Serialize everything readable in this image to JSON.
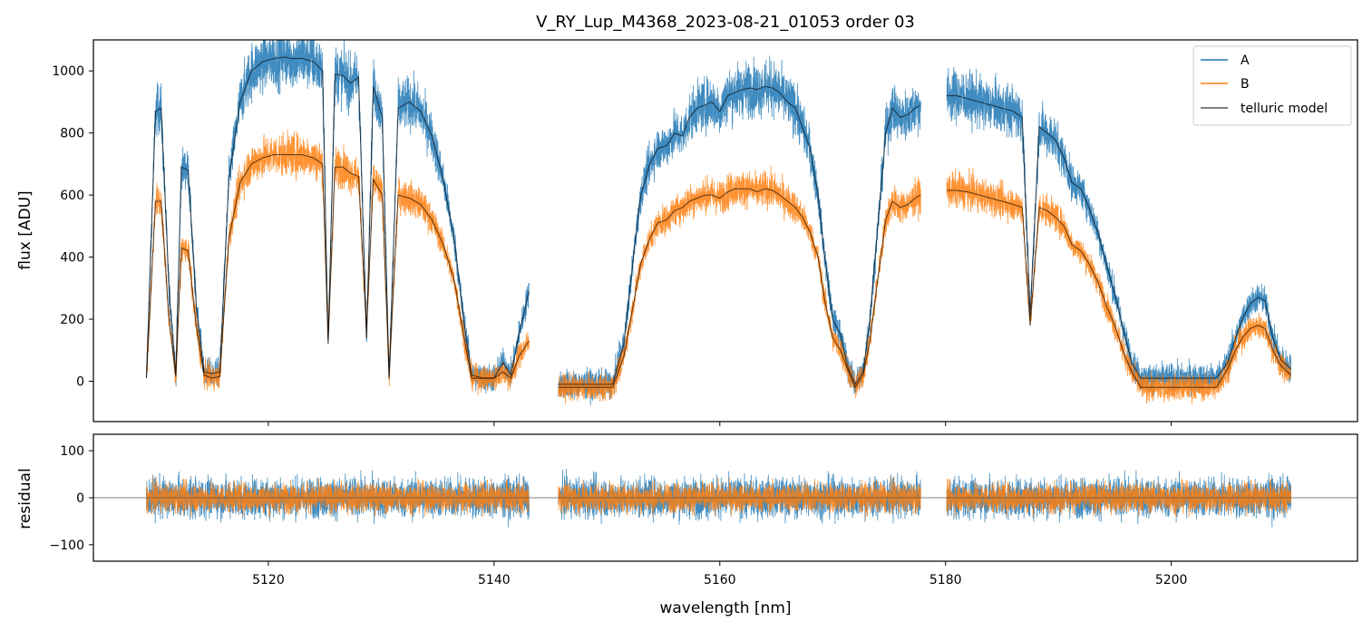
{
  "chart_data": [
    {
      "type": "line",
      "panel": "top",
      "title": "V_RY_Lup_M4368_2023-08-21_01053  order 03",
      "xlabel": "",
      "ylabel": "flux [ADU]",
      "xlim": [
        5104.5,
        5216.5
      ],
      "ylim": [
        -130,
        1100
      ],
      "xticks": [
        5120,
        5140,
        5160,
        5180,
        5200
      ],
      "yticks": [
        0,
        200,
        400,
        600,
        800,
        1000
      ],
      "ytick_labels": [
        "0",
        "200",
        "400",
        "600",
        "800",
        "1000"
      ],
      "segments": [
        [
          5109.2,
          5143.1
        ],
        [
          5145.7,
          5177.8
        ],
        [
          5180.1,
          5210.6
        ]
      ],
      "series": [
        {
          "name": "A",
          "color": "#1f77b4",
          "x": [
            5109.2,
            5110.0,
            5110.5,
            5111.2,
            5111.8,
            5112.3,
            5112.9,
            5113.6,
            5114.3,
            5115.0,
            5115.7,
            5116.5,
            5117.5,
            5118.5,
            5119.5,
            5120.5,
            5121.5,
            5122.0,
            5123.0,
            5124.0,
            5124.8,
            5125.3,
            5125.9,
            5126.6,
            5127.3,
            5128.0,
            5128.7,
            5129.3,
            5130.1,
            5130.7,
            5131.5,
            5132.5,
            5133.5,
            5134.5,
            5135.5,
            5136.5,
            5137.3,
            5138.0,
            5139.0,
            5140.0,
            5140.8,
            5141.5,
            5142.2,
            5143.1,
            5145.7,
            5148.0,
            5150.5,
            5151.5,
            5152.5,
            5153.0,
            5153.8,
            5154.5,
            5155.3,
            5156.0,
            5156.7,
            5157.3,
            5158.0,
            5158.7,
            5159.3,
            5160.0,
            5160.7,
            5161.3,
            5162.0,
            5162.7,
            5163.3,
            5164.0,
            5164.7,
            5165.3,
            5166.0,
            5166.7,
            5167.3,
            5168.0,
            5168.7,
            5169.3,
            5170.0,
            5170.7,
            5171.3,
            5172.0,
            5172.7,
            5173.3,
            5174.0,
            5174.7,
            5175.3,
            5176.0,
            5176.7,
            5177.3,
            5177.8,
            5180.1,
            5181.0,
            5182.0,
            5183.0,
            5184.0,
            5185.0,
            5186.0,
            5186.8,
            5187.5,
            5188.3,
            5189.0,
            5189.7,
            5190.5,
            5191.2,
            5192.0,
            5192.7,
            5193.5,
            5194.3,
            5195.0,
            5195.8,
            5196.5,
            5197.3,
            5198.0,
            5199.0,
            5200.0,
            5201.0,
            5202.0,
            5203.0,
            5204.0,
            5205.0,
            5205.7,
            5206.3,
            5207.0,
            5207.7,
            5208.3,
            5209.0,
            5209.7,
            5210.3,
            5210.6
          ],
          "y": [
            10,
            870,
            880,
            300,
            20,
            690,
            680,
            250,
            30,
            25,
            30,
            650,
            900,
            1000,
            1030,
            1040,
            1045,
            1040,
            1040,
            1030,
            1000,
            120,
            990,
            985,
            960,
            980,
            140,
            950,
            850,
            10,
            880,
            900,
            870,
            790,
            650,
            450,
            200,
            20,
            10,
            10,
            60,
            20,
            150,
            290,
            -10,
            -10,
            -10,
            120,
            450,
            600,
            700,
            750,
            760,
            800,
            790,
            850,
            880,
            890,
            900,
            870,
            920,
            930,
            940,
            945,
            940,
            950,
            945,
            930,
            900,
            880,
            820,
            750,
            600,
            400,
            200,
            150,
            50,
            -10,
            30,
            200,
            500,
            800,
            880,
            850,
            860,
            880,
            890,
            920,
            920,
            910,
            900,
            890,
            880,
            870,
            850,
            210,
            820,
            800,
            780,
            720,
            640,
            620,
            560,
            480,
            370,
            280,
            160,
            60,
            10,
            10,
            10,
            10,
            10,
            10,
            10,
            10,
            60,
            140,
            200,
            250,
            270,
            260,
            140,
            70,
            50,
            40
          ]
        },
        {
          "name": "B",
          "color": "#ff7f0e",
          "x": [
            5109.2,
            5110.0,
            5110.5,
            5111.2,
            5111.8,
            5112.3,
            5112.9,
            5113.6,
            5114.3,
            5115.0,
            5115.7,
            5116.5,
            5117.5,
            5118.5,
            5119.5,
            5120.5,
            5121.5,
            5122.0,
            5123.0,
            5124.0,
            5124.8,
            5125.3,
            5125.9,
            5126.6,
            5127.3,
            5128.0,
            5128.7,
            5129.3,
            5130.1,
            5130.7,
            5131.5,
            5132.5,
            5133.5,
            5134.5,
            5135.5,
            5136.5,
            5137.3,
            5138.0,
            5139.0,
            5140.0,
            5140.8,
            5141.5,
            5142.2,
            5143.1,
            5145.7,
            5148.0,
            5150.5,
            5151.5,
            5152.5,
            5153.0,
            5153.8,
            5154.5,
            5155.3,
            5156.0,
            5156.7,
            5157.3,
            5158.0,
            5158.7,
            5159.3,
            5160.0,
            5160.7,
            5161.3,
            5162.0,
            5162.7,
            5163.3,
            5164.0,
            5164.7,
            5165.3,
            5166.0,
            5166.7,
            5167.3,
            5168.0,
            5168.7,
            5169.3,
            5170.0,
            5170.7,
            5171.3,
            5172.0,
            5172.7,
            5173.3,
            5174.0,
            5174.7,
            5175.3,
            5176.0,
            5176.7,
            5177.3,
            5177.8,
            5180.1,
            5181.0,
            5182.0,
            5183.0,
            5184.0,
            5185.0,
            5186.0,
            5186.8,
            5187.5,
            5188.3,
            5189.0,
            5189.7,
            5190.5,
            5191.2,
            5192.0,
            5192.7,
            5193.5,
            5194.3,
            5195.0,
            5195.8,
            5196.5,
            5197.3,
            5198.0,
            5199.0,
            5200.0,
            5201.0,
            5202.0,
            5203.0,
            5204.0,
            5205.0,
            5205.7,
            5206.3,
            5207.0,
            5207.7,
            5208.3,
            5209.0,
            5209.7,
            5210.3,
            5210.6
          ],
          "y": [
            10,
            580,
            580,
            200,
            15,
            430,
            420,
            180,
            20,
            10,
            15,
            460,
            640,
            700,
            720,
            730,
            730,
            730,
            730,
            720,
            700,
            130,
            690,
            690,
            670,
            660,
            160,
            650,
            600,
            15,
            600,
            590,
            570,
            520,
            440,
            320,
            150,
            10,
            10,
            10,
            30,
            10,
            80,
            130,
            -20,
            -20,
            -20,
            80,
            280,
            380,
            460,
            510,
            520,
            550,
            560,
            580,
            590,
            600,
            600,
            590,
            610,
            620,
            620,
            620,
            610,
            620,
            615,
            600,
            580,
            560,
            530,
            480,
            400,
            260,
            140,
            100,
            40,
            -20,
            20,
            130,
            330,
            520,
            580,
            560,
            570,
            590,
            600,
            615,
            615,
            610,
            600,
            590,
            580,
            570,
            560,
            180,
            560,
            550,
            530,
            500,
            440,
            420,
            380,
            320,
            240,
            180,
            90,
            30,
            -20,
            -20,
            -20,
            -20,
            -20,
            -20,
            -20,
            -20,
            40,
            100,
            140,
            170,
            180,
            170,
            100,
            50,
            30,
            20
          ]
        },
        {
          "name": "telluric model",
          "color": "#000000",
          "x": [
            5109.2,
            5110.0,
            5110.5,
            5111.2,
            5111.8,
            5112.3,
            5112.9,
            5113.6,
            5114.3,
            5115.0,
            5115.7,
            5116.5,
            5117.5,
            5118.5,
            5119.5,
            5120.5,
            5121.5,
            5122.0,
            5123.0,
            5124.0,
            5124.8,
            5125.3,
            5125.9,
            5126.6,
            5127.3,
            5128.0,
            5128.7,
            5129.3,
            5130.1,
            5130.7,
            5131.5,
            5132.5,
            5133.5,
            5134.5,
            5135.5,
            5136.5,
            5137.3,
            5138.0,
            5139.0,
            5140.0,
            5140.8,
            5141.5,
            5142.2,
            5143.1,
            5145.7,
            5148.0,
            5150.5,
            5151.5,
            5152.5,
            5153.0,
            5153.8,
            5154.5,
            5155.3,
            5156.0,
            5156.7,
            5157.3,
            5158.0,
            5158.7,
            5159.3,
            5160.0,
            5160.7,
            5161.3,
            5162.0,
            5162.7,
            5163.3,
            5164.0,
            5164.7,
            5165.3,
            5166.0,
            5166.7,
            5167.3,
            5168.0,
            5168.7,
            5169.3,
            5170.0,
            5170.7,
            5171.3,
            5172.0,
            5172.7,
            5173.3,
            5174.0,
            5174.7,
            5175.3,
            5176.0,
            5176.7,
            5177.3,
            5177.8,
            5180.1,
            5181.0,
            5182.0,
            5183.0,
            5184.0,
            5185.0,
            5186.0,
            5186.8,
            5187.5,
            5188.3,
            5189.0,
            5189.7,
            5190.5,
            5191.2,
            5192.0,
            5192.7,
            5193.5,
            5194.3,
            5195.0,
            5195.8,
            5196.5,
            5197.3,
            5198.0,
            5199.0,
            5200.0,
            5201.0,
            5202.0,
            5203.0,
            5204.0,
            5205.0,
            5205.7,
            5206.3,
            5207.0,
            5207.7,
            5208.3,
            5209.0,
            5209.7,
            5210.3,
            5210.6
          ],
          "y": [
            10,
            870,
            880,
            300,
            20,
            690,
            680,
            250,
            30,
            25,
            30,
            650,
            900,
            1000,
            1030,
            1040,
            1045,
            1040,
            1040,
            1030,
            1000,
            120,
            990,
            985,
            960,
            980,
            140,
            950,
            850,
            10,
            880,
            900,
            870,
            790,
            650,
            450,
            200,
            20,
            10,
            10,
            60,
            20,
            150,
            290,
            -10,
            -10,
            -10,
            120,
            450,
            600,
            700,
            750,
            760,
            800,
            790,
            850,
            880,
            890,
            900,
            870,
            920,
            930,
            940,
            945,
            940,
            950,
            945,
            930,
            900,
            880,
            820,
            750,
            600,
            400,
            200,
            150,
            50,
            -10,
            30,
            200,
            500,
            800,
            880,
            850,
            860,
            880,
            890,
            920,
            920,
            910,
            900,
            890,
            880,
            870,
            850,
            210,
            820,
            800,
            780,
            720,
            640,
            620,
            560,
            480,
            370,
            280,
            160,
            60,
            10,
            10,
            10,
            10,
            10,
            10,
            10,
            10,
            60,
            140,
            200,
            250,
            270,
            260,
            140,
            70,
            50,
            40
          ]
        }
      ],
      "legend": {
        "location": "top-right",
        "entries": [
          "A",
          "B",
          "telluric model"
        ]
      }
    },
    {
      "type": "line",
      "panel": "bottom",
      "xlabel": "wavelength [nm]",
      "ylabel": "residual",
      "xlim": [
        5104.5,
        5216.5
      ],
      "ylim": [
        -135,
        135
      ],
      "xticks": [
        5120,
        5140,
        5160,
        5180,
        5200
      ],
      "xtick_labels": [
        "5120",
        "5140",
        "5160",
        "5180",
        "5200"
      ],
      "yticks": [
        -100,
        0,
        100
      ],
      "ytick_labels": [
        "−100",
        "0",
        "100"
      ],
      "reference_line": 0,
      "segments": [
        [
          5109.2,
          5143.1
        ],
        [
          5145.7,
          5177.8
        ],
        [
          5180.1,
          5210.6
        ]
      ],
      "series": [
        {
          "name": "A",
          "color": "#1f77b4",
          "noise_amplitude": 75
        },
        {
          "name": "B",
          "color": "#ff7f0e",
          "noise_amplitude": 55
        }
      ]
    }
  ]
}
